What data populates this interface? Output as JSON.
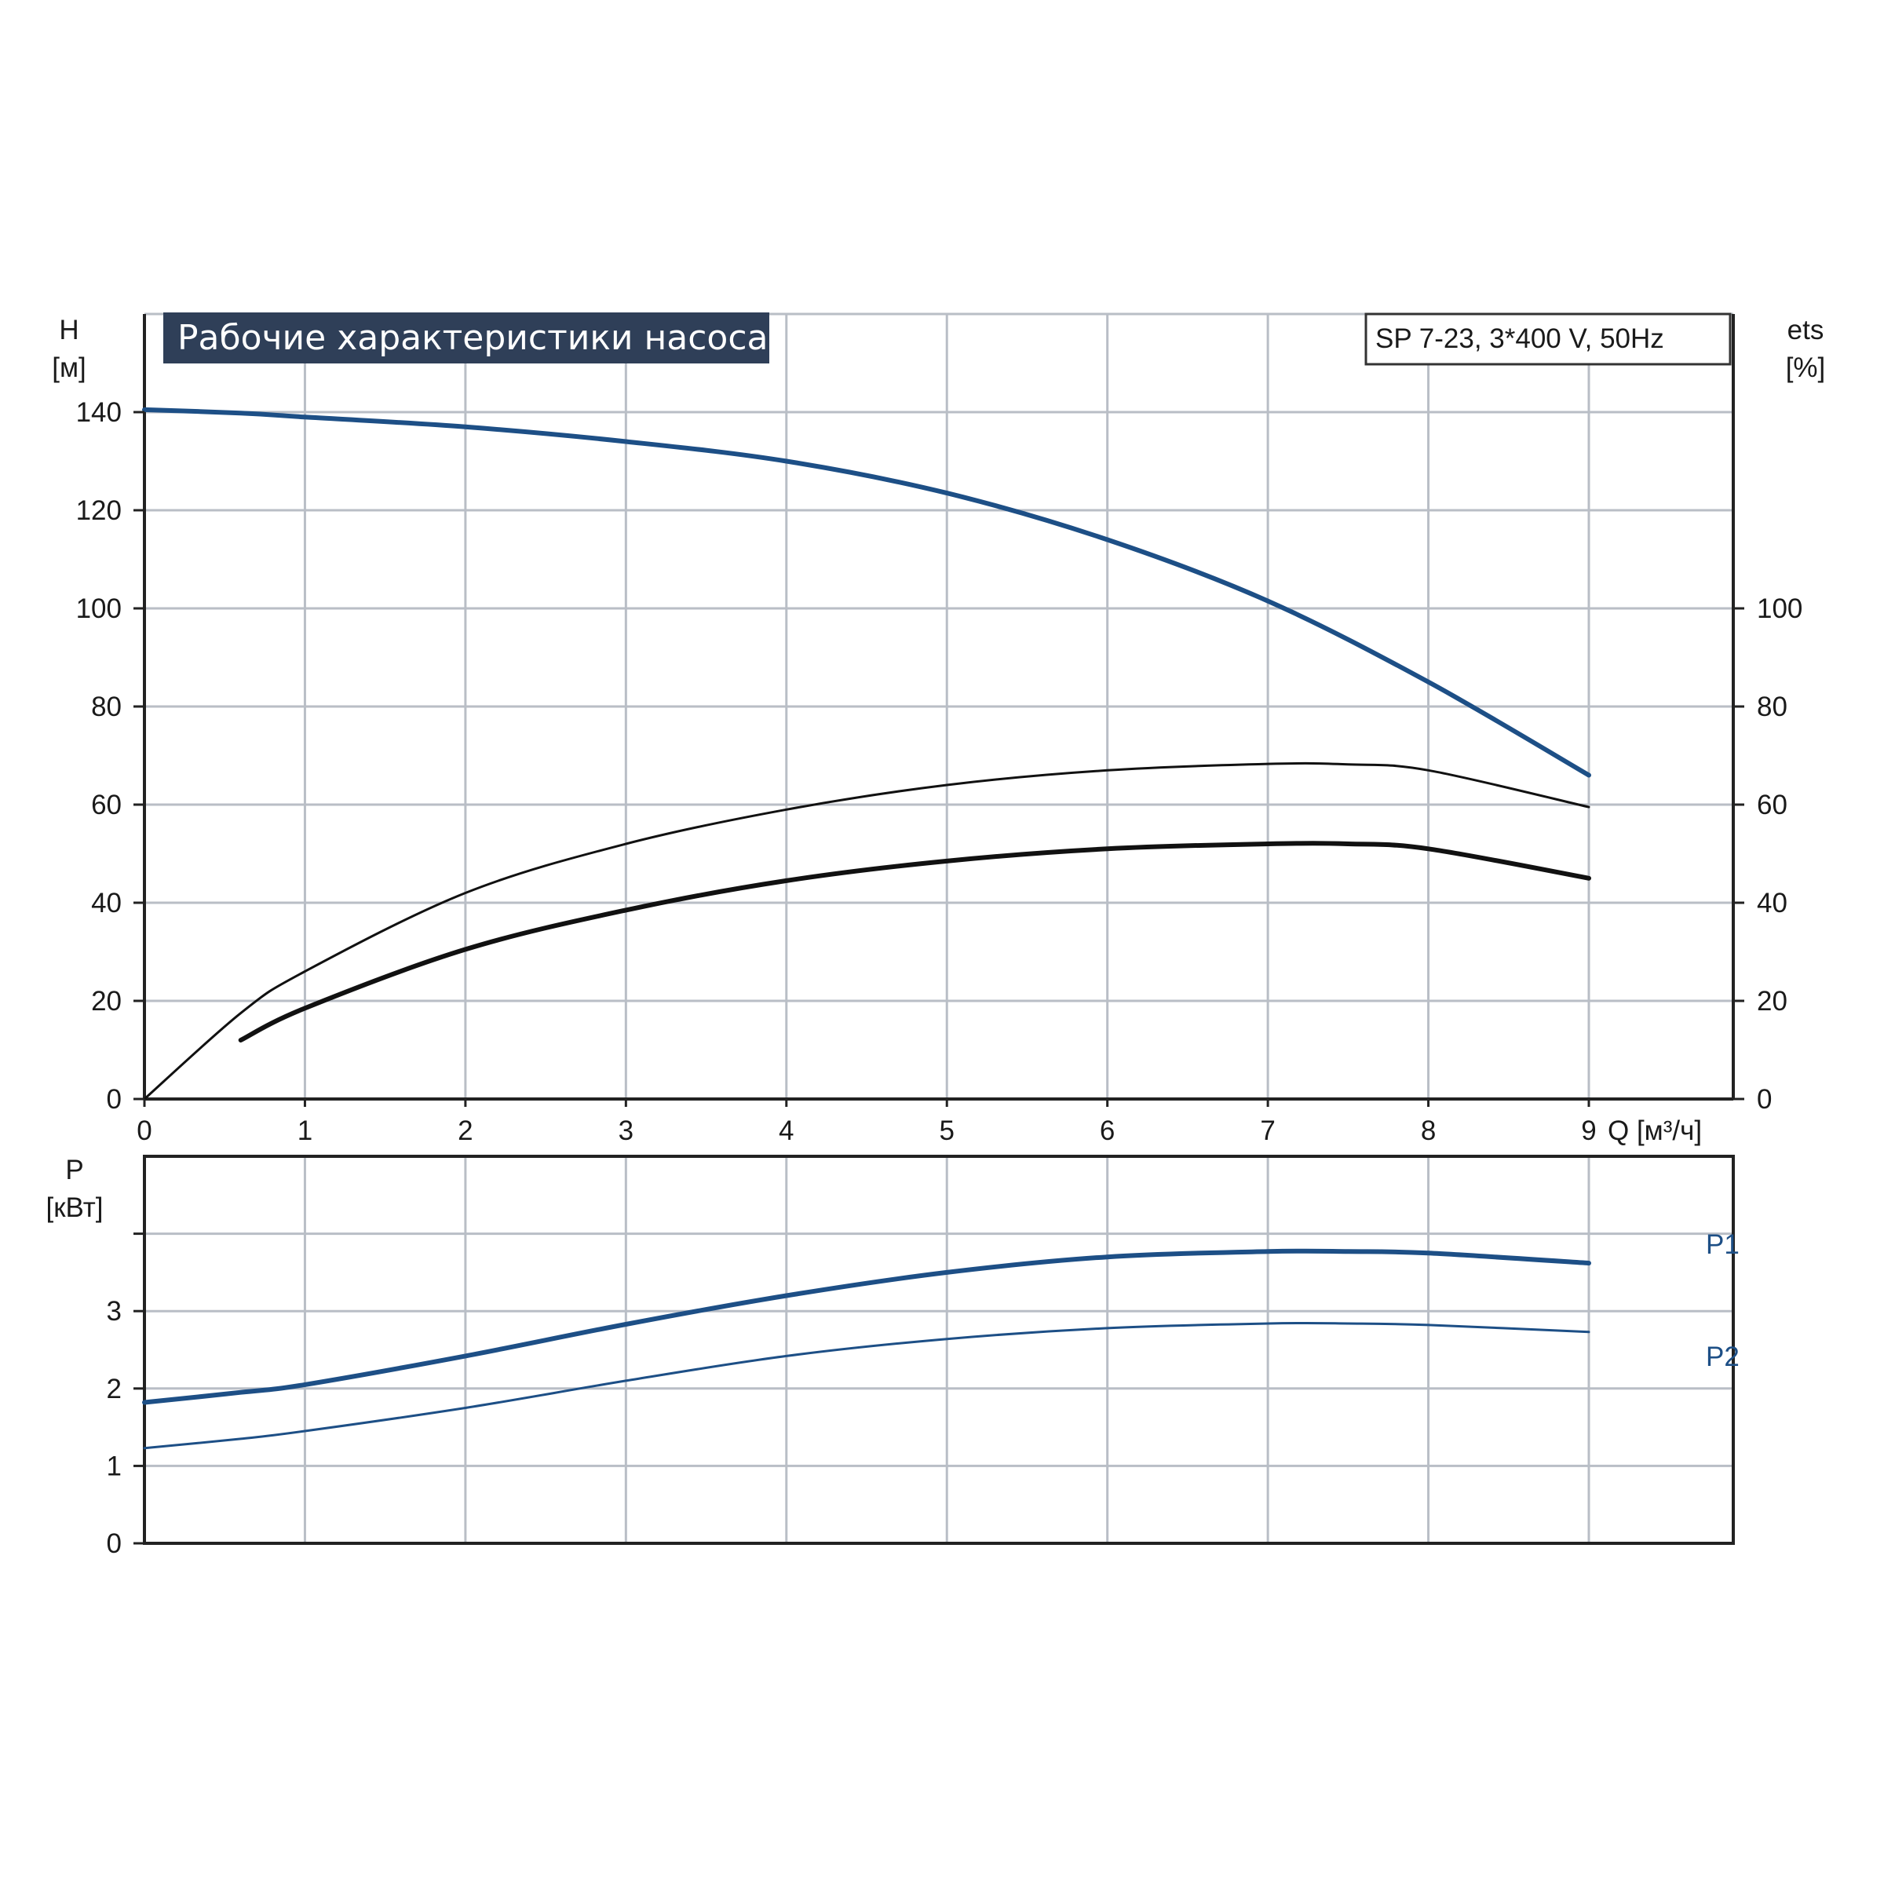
{
  "title": "Рабочие характеристики насоса",
  "model_label": "SP 7-23, 3*400 V, 50Hz",
  "colors": {
    "blue": "#1d4f86",
    "black": "#111111",
    "title_bg": "#2f3f58",
    "grid": "#b9bec6"
  },
  "chart_data": [
    {
      "type": "line",
      "xlabel": "Q [м³/ч]",
      "ylabel": "H",
      "ylabel_unit": "[м]",
      "y2label": "ets",
      "y2label_unit": "[%]",
      "xlim": [
        0,
        9.9
      ],
      "ylim": [
        0,
        160
      ],
      "y2lim": [
        0,
        160
      ],
      "x_ticks": [
        "0",
        "1",
        "2",
        "3",
        "4",
        "5",
        "6",
        "7",
        "8",
        "9"
      ],
      "y_ticks": [
        "0",
        "20",
        "40",
        "60",
        "80",
        "100",
        "120",
        "140"
      ],
      "y2_ticks": [
        "0",
        "20",
        "40",
        "60",
        "80",
        "100"
      ],
      "grid": true,
      "series": [
        {
          "color": "#1d4f86",
          "width": 6,
          "x": [
            0,
            0.6,
            1,
            2,
            3,
            4,
            5,
            6,
            7,
            8,
            9
          ],
          "y": [
            140.5,
            139.8,
            139,
            137,
            134,
            130,
            123.5,
            114,
            101.5,
            85,
            66
          ]
        },
        {
          "color": "#111111",
          "width": 3,
          "x": [
            0,
            0.6,
            1,
            2,
            3,
            4,
            5,
            6,
            7,
            7.5,
            8,
            9
          ],
          "y": [
            0,
            17.5,
            26,
            42,
            52,
            59,
            64,
            67,
            68.3,
            68.2,
            67,
            59.5
          ]
        },
        {
          "color": "#111111",
          "width": 6,
          "x": [
            0.6,
            1,
            2,
            3,
            4,
            5,
            6,
            7,
            7.5,
            8,
            9
          ],
          "y": [
            12,
            18.5,
            30.5,
            38.5,
            44.5,
            48.5,
            51,
            52,
            52,
            51,
            45
          ]
        }
      ]
    },
    {
      "type": "line",
      "xlabel": "",
      "ylabel": "P",
      "ylabel_unit": "[кВт]",
      "xlim": [
        0,
        9.9
      ],
      "ylim": [
        0,
        5
      ],
      "y_ticks": [
        "0",
        "1",
        "2",
        "3",
        ""
      ],
      "y_tick_values": [
        0,
        1,
        2,
        3,
        4
      ],
      "grid": true,
      "series": [
        {
          "name": "P1",
          "color": "#1d4f86",
          "width": 6,
          "x": [
            0,
            0.6,
            1,
            2,
            3,
            4,
            5,
            6,
            7,
            7.5,
            8,
            9
          ],
          "y": [
            1.82,
            1.95,
            2.05,
            2.42,
            2.83,
            3.2,
            3.5,
            3.7,
            3.77,
            3.77,
            3.75,
            3.62
          ]
        },
        {
          "name": "P2",
          "color": "#1d4f86",
          "width": 3,
          "x": [
            0,
            0.6,
            1,
            2,
            3,
            4,
            5,
            6,
            7,
            7.5,
            8,
            9
          ],
          "y": [
            1.23,
            1.35,
            1.45,
            1.75,
            2.1,
            2.42,
            2.64,
            2.78,
            2.84,
            2.84,
            2.82,
            2.73
          ]
        }
      ]
    }
  ]
}
